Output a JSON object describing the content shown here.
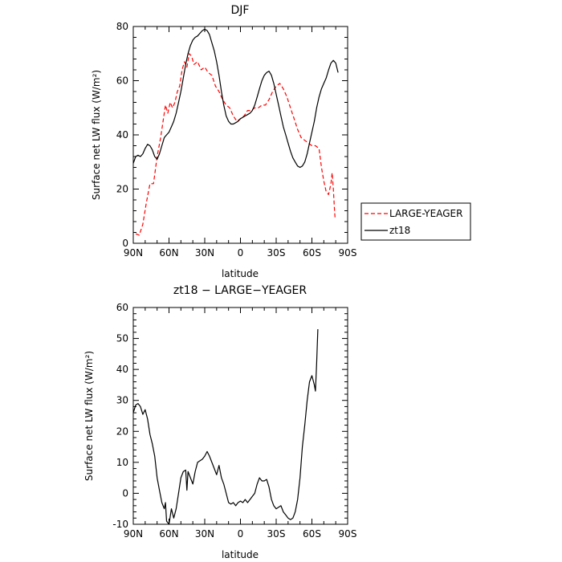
{
  "chart_data": [
    {
      "type": "line",
      "title": "DJF",
      "xlabel": "latitude",
      "ylabel": "Surface net LW flux (W/m²)",
      "x_ticks": [
        {
          "value": -90,
          "label": "90N"
        },
        {
          "value": -60,
          "label": "60N"
        },
        {
          "value": -30,
          "label": "30N"
        },
        {
          "value": 0,
          "label": "0"
        },
        {
          "value": 30,
          "label": "30S"
        },
        {
          "value": 60,
          "label": "60S"
        },
        {
          "value": 90,
          "label": "90S"
        }
      ],
      "y_ticks": [
        0,
        20,
        40,
        60,
        80
      ],
      "xlim": [
        -90,
        90
      ],
      "ylim": [
        0,
        80
      ],
      "legend_position": "right",
      "series": [
        {
          "name": "LARGE-YEAGER",
          "color": "#ff0000",
          "dash": "dashed",
          "points": [
            [
              -88,
              3.5
            ],
            [
              -85,
              3
            ],
            [
              -82,
              7
            ],
            [
              -79,
              15
            ],
            [
              -76,
              22
            ],
            [
              -73,
              22
            ],
            [
              -70,
              32
            ],
            [
              -67,
              39
            ],
            [
              -65,
              45
            ],
            [
              -63,
              51
            ],
            [
              -61,
              48
            ],
            [
              -59,
              52
            ],
            [
              -57,
              50
            ],
            [
              -55,
              52
            ],
            [
              -53,
              56
            ],
            [
              -51,
              58
            ],
            [
              -49,
              64
            ],
            [
              -47,
              67
            ],
            [
              -45,
              65
            ],
            [
              -43,
              70
            ],
            [
              -41,
              69
            ],
            [
              -39,
              66
            ],
            [
              -36,
              67
            ],
            [
              -33,
              64
            ],
            [
              -30,
              65
            ],
            [
              -27,
              63
            ],
            [
              -24,
              62
            ],
            [
              -21,
              58
            ],
            [
              -18,
              56
            ],
            [
              -15,
              53
            ],
            [
              -12,
              51
            ],
            [
              -9,
              50
            ],
            [
              -6,
              47
            ],
            [
              -3,
              45
            ],
            [
              0,
              46
            ],
            [
              3,
              47
            ],
            [
              6,
              49
            ],
            [
              9,
              49
            ],
            [
              12,
              50
            ],
            [
              15,
              50
            ],
            [
              18,
              51
            ],
            [
              21,
              51
            ],
            [
              24,
              53
            ],
            [
              27,
              56
            ],
            [
              30,
              58
            ],
            [
              33,
              59
            ],
            [
              36,
              57
            ],
            [
              39,
              54
            ],
            [
              42,
              50
            ],
            [
              45,
              46
            ],
            [
              48,
              42
            ],
            [
              51,
              39
            ],
            [
              54,
              38
            ],
            [
              57,
              37
            ],
            [
              60,
              36
            ],
            [
              63,
              36
            ],
            [
              66,
              35
            ],
            [
              68,
              28
            ],
            [
              70,
              23
            ],
            [
              72,
              19
            ],
            [
              74,
              18
            ],
            [
              76,
              22
            ],
            [
              77,
              26
            ],
            [
              78,
              20
            ],
            [
              79,
              12
            ],
            [
              79.5,
              9
            ]
          ]
        },
        {
          "name": "zt18",
          "color": "#000000",
          "dash": "solid",
          "points": [
            [
              -90,
              29.5
            ],
            [
              -88,
              32
            ],
            [
              -86,
              32.5
            ],
            [
              -84,
              32
            ],
            [
              -82,
              33
            ],
            [
              -80,
              35
            ],
            [
              -78,
              36.5
            ],
            [
              -76,
              36
            ],
            [
              -74,
              34.5
            ],
            [
              -72,
              32
            ],
            [
              -70,
              31
            ],
            [
              -68,
              33
            ],
            [
              -66,
              36
            ],
            [
              -64,
              39
            ],
            [
              -62,
              40
            ],
            [
              -60,
              41
            ],
            [
              -58,
              43
            ],
            [
              -56,
              45
            ],
            [
              -54,
              48
            ],
            [
              -52,
              52
            ],
            [
              -50,
              56
            ],
            [
              -48,
              61
            ],
            [
              -46,
              66
            ],
            [
              -44,
              70
            ],
            [
              -42,
              73
            ],
            [
              -40,
              75
            ],
            [
              -38,
              76
            ],
            [
              -36,
              76.5
            ],
            [
              -34,
              77.5
            ],
            [
              -32,
              78.5
            ],
            [
              -30,
              79
            ],
            [
              -28,
              78.5
            ],
            [
              -26,
              77
            ],
            [
              -24,
              74
            ],
            [
              -22,
              71
            ],
            [
              -20,
              67
            ],
            [
              -18,
              62
            ],
            [
              -16,
              56
            ],
            [
              -14,
              51
            ],
            [
              -12,
              47
            ],
            [
              -10,
              45
            ],
            [
              -8,
              44
            ],
            [
              -6,
              44
            ],
            [
              -4,
              44.5
            ],
            [
              -2,
              45
            ],
            [
              0,
              46
            ],
            [
              2,
              46.5
            ],
            [
              4,
              47
            ],
            [
              6,
              47.5
            ],
            [
              8,
              48
            ],
            [
              10,
              49
            ],
            [
              12,
              51
            ],
            [
              14,
              54
            ],
            [
              16,
              57
            ],
            [
              18,
              60
            ],
            [
              20,
              62
            ],
            [
              22,
              63
            ],
            [
              24,
              63.5
            ],
            [
              26,
              62
            ],
            [
              28,
              59
            ],
            [
              30,
              55
            ],
            [
              32,
              51
            ],
            [
              34,
              47
            ],
            [
              36,
              43
            ],
            [
              38,
              40
            ],
            [
              40,
              37
            ],
            [
              42,
              34
            ],
            [
              44,
              31.5
            ],
            [
              46,
              30
            ],
            [
              48,
              28.5
            ],
            [
              50,
              28
            ],
            [
              52,
              28.5
            ],
            [
              54,
              30
            ],
            [
              56,
              33
            ],
            [
              58,
              37
            ],
            [
              60,
              41
            ],
            [
              62,
              45
            ],
            [
              64,
              50
            ],
            [
              66,
              54
            ],
            [
              68,
              57
            ],
            [
              70,
              59
            ],
            [
              72,
              61
            ],
            [
              74,
              64
            ],
            [
              76,
              66.5
            ],
            [
              78,
              67.5
            ],
            [
              80,
              66.5
            ],
            [
              82,
              63
            ]
          ]
        }
      ]
    },
    {
      "type": "line",
      "title": "zt18 − LARGE−YEAGER",
      "xlabel": "latitude",
      "ylabel": "Surface net LW flux (W/m²)",
      "x_ticks": [
        {
          "value": -90,
          "label": "90N"
        },
        {
          "value": -60,
          "label": "60N"
        },
        {
          "value": -30,
          "label": "30N"
        },
        {
          "value": 0,
          "label": "0"
        },
        {
          "value": 30,
          "label": "30S"
        },
        {
          "value": 60,
          "label": "60S"
        },
        {
          "value": 90,
          "label": "90S"
        }
      ],
      "y_ticks": [
        -10,
        0,
        10,
        20,
        30,
        40,
        50,
        60
      ],
      "xlim": [
        -90,
        90
      ],
      "ylim": [
        -10,
        60
      ],
      "series": [
        {
          "color": "#000000",
          "dash": "solid",
          "points": [
            [
              -90,
              26
            ],
            [
              -88,
              28.5
            ],
            [
              -86,
              29
            ],
            [
              -84,
              28
            ],
            [
              -82,
              25.5
            ],
            [
              -80,
              27
            ],
            [
              -78,
              24
            ],
            [
              -76,
              19
            ],
            [
              -74,
              16
            ],
            [
              -72,
              12
            ],
            [
              -70,
              5
            ],
            [
              -68,
              1
            ],
            [
              -66,
              -3
            ],
            [
              -64,
              -5
            ],
            [
              -63,
              -3
            ],
            [
              -62,
              -9
            ],
            [
              -60,
              -10
            ],
            [
              -58,
              -5
            ],
            [
              -56,
              -8
            ],
            [
              -54,
              -5
            ],
            [
              -52,
              0
            ],
            [
              -50,
              5
            ],
            [
              -48,
              7
            ],
            [
              -46,
              7.5
            ],
            [
              -45,
              1
            ],
            [
              -44,
              7
            ],
            [
              -42,
              5
            ],
            [
              -40,
              3
            ],
            [
              -38,
              7
            ],
            [
              -36,
              10
            ],
            [
              -34,
              10.5
            ],
            [
              -32,
              11
            ],
            [
              -30,
              12
            ],
            [
              -28,
              13.5
            ],
            [
              -26,
              12
            ],
            [
              -24,
              10
            ],
            [
              -22,
              8
            ],
            [
              -20,
              6
            ],
            [
              -18,
              9
            ],
            [
              -17,
              7
            ],
            [
              -16,
              5
            ],
            [
              -14,
              3
            ],
            [
              -12,
              0
            ],
            [
              -10,
              -3
            ],
            [
              -8,
              -3.5
            ],
            [
              -6,
              -3
            ],
            [
              -4,
              -4
            ],
            [
              -2,
              -3
            ],
            [
              0,
              -2.5
            ],
            [
              2,
              -3
            ],
            [
              4,
              -2
            ],
            [
              6,
              -3
            ],
            [
              8,
              -2
            ],
            [
              10,
              -1
            ],
            [
              12,
              0
            ],
            [
              14,
              3
            ],
            [
              16,
              5
            ],
            [
              18,
              4
            ],
            [
              20,
              4
            ],
            [
              22,
              4.5
            ],
            [
              24,
              2
            ],
            [
              26,
              -2
            ],
            [
              28,
              -4
            ],
            [
              30,
              -5
            ],
            [
              32,
              -4.5
            ],
            [
              34,
              -4
            ],
            [
              36,
              -6
            ],
            [
              38,
              -7
            ],
            [
              40,
              -8
            ],
            [
              42,
              -8.5
            ],
            [
              44,
              -8
            ],
            [
              46,
              -6
            ],
            [
              48,
              -2
            ],
            [
              50,
              5
            ],
            [
              52,
              15
            ],
            [
              54,
              22
            ],
            [
              56,
              30
            ],
            [
              58,
              36
            ],
            [
              60,
              38
            ],
            [
              62,
              35
            ],
            [
              63,
              33
            ],
            [
              64,
              42
            ],
            [
              65,
              53
            ]
          ]
        }
      ]
    }
  ]
}
